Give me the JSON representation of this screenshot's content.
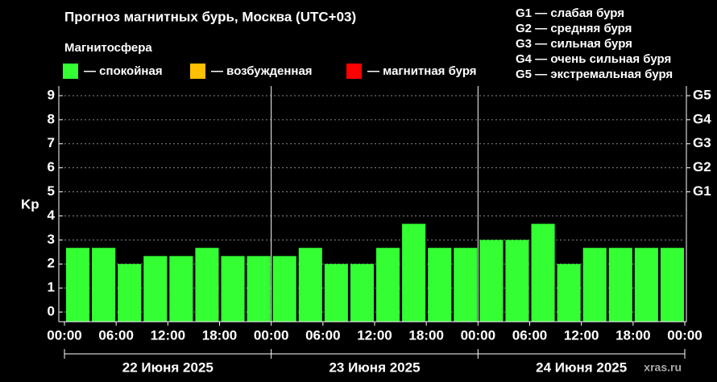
{
  "chart_data": {
    "type": "bar",
    "title": "Прогноз магнитных бурь, Москва (UTC+03)",
    "legend_title": "Магнитосфера",
    "legend": [
      {
        "color": "#33ff33",
        "label": "— спокойная"
      },
      {
        "color": "#ffc000",
        "label": "— возбужденная"
      },
      {
        "color": "#ff0000",
        "label": "— магнитная буря"
      }
    ],
    "scale_notes": [
      "G1 — слабая буря",
      "G2 — средняя буря",
      "G3 — сильная буря",
      "G4 — очень сильная буря",
      "G5 — экстремальная буря"
    ],
    "ylabel": "Kp",
    "categories": [
      null,
      null,
      null,
      null,
      null,
      null,
      null,
      null,
      null,
      null,
      null,
      null,
      null,
      null,
      null,
      null,
      null,
      null,
      null,
      null,
      null,
      null,
      null,
      null
    ],
    "values": [
      2.67,
      2.67,
      2.0,
      2.33,
      2.33,
      2.67,
      2.33,
      2.33,
      2.33,
      2.67,
      2.0,
      2.0,
      2.67,
      3.67,
      2.67,
      2.67,
      3.0,
      3.0,
      3.67,
      2.0,
      2.67,
      2.67,
      2.67,
      2.67
    ],
    "color": "#33ff33",
    "xtick_labels": [
      "00:00",
      "06:00",
      "12:00",
      "18:00",
      "00:00",
      "06:00",
      "12:00",
      "18:00",
      "00:00",
      "06:00",
      "12:00",
      "18:00",
      "00:00"
    ],
    "days": [
      "22 Июня 2025",
      "23 Июня 2025",
      "24 Июня 2025"
    ],
    "ylim": [
      -0.4,
      9.4
    ],
    "yticks": [
      0,
      1,
      2,
      3,
      4,
      5,
      6,
      7,
      8,
      9
    ],
    "y2ticks": [
      {
        "value": 5,
        "label": "G1"
      },
      {
        "value": 6,
        "label": "G2"
      },
      {
        "value": 7,
        "label": "G3"
      },
      {
        "value": 8,
        "label": "G4"
      },
      {
        "value": 9,
        "label": "G5"
      }
    ],
    "grid": true,
    "watermark": "xras.ru"
  }
}
